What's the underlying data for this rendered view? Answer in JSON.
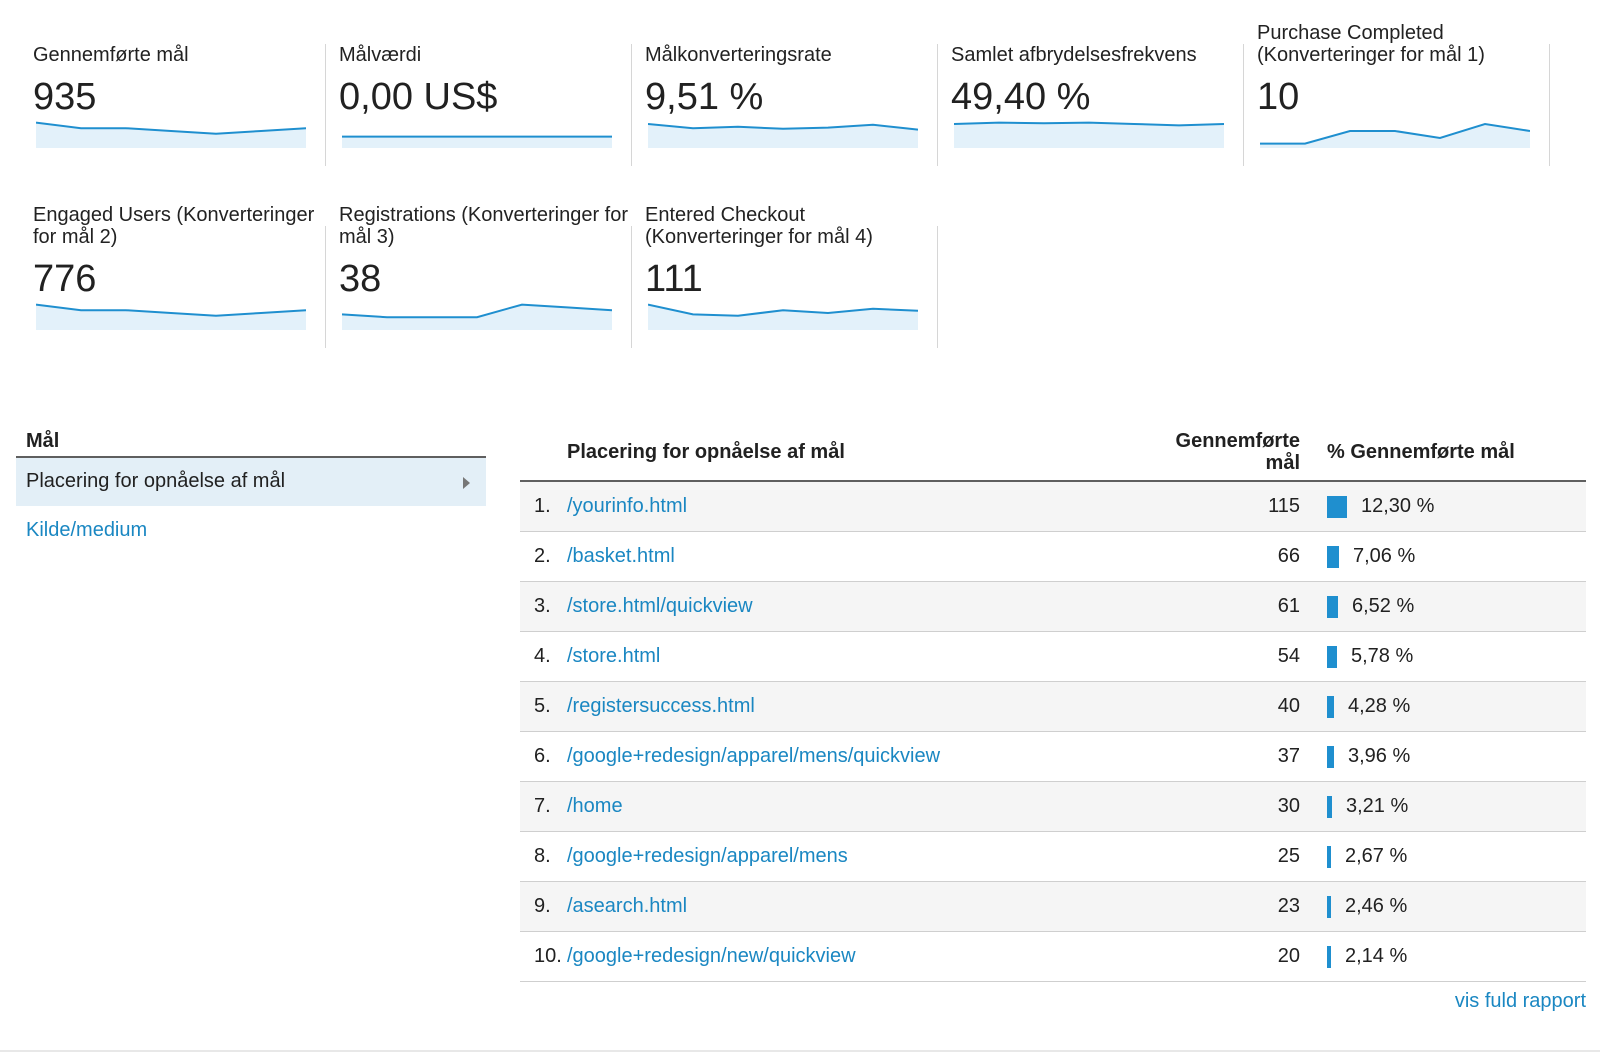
{
  "cards": [
    {
      "title": "Gennemførte mål",
      "value": "935",
      "trend": [
        0.8,
        0.6,
        0.6,
        0.5,
        0.4,
        0.5,
        0.6
      ]
    },
    {
      "title": "Målværdi",
      "value": "0,00 US$",
      "trend": [
        0.3,
        0.3,
        0.3,
        0.3,
        0.3,
        0.3,
        0.3
      ]
    },
    {
      "title": "Målkonverteringsrate",
      "value": "9,51 %",
      "trend": [
        0.75,
        0.6,
        0.65,
        0.58,
        0.62,
        0.72,
        0.55
      ]
    },
    {
      "title": "Samlet afbrydelsesfrekvens",
      "value": "49,40 %",
      "trend": [
        0.75,
        0.8,
        0.78,
        0.8,
        0.75,
        0.7,
        0.75
      ]
    },
    {
      "title": "Purchase Completed (Konverteringer for mål 1)",
      "value": "10",
      "trend": [
        0.05,
        0.05,
        0.5,
        0.5,
        0.25,
        0.75,
        0.5
      ]
    },
    {
      "title": "Engaged Users (Konverteringer for mål 2)",
      "value": "776",
      "trend": [
        0.8,
        0.6,
        0.6,
        0.5,
        0.4,
        0.5,
        0.6
      ]
    },
    {
      "title": "Registrations (Konverteringer for mål 3)",
      "value": "38",
      "trend": [
        0.45,
        0.35,
        0.35,
        0.35,
        0.8,
        0.7,
        0.6
      ]
    },
    {
      "title": "Entered Checkout (Konverteringer for mål 4)",
      "value": "111",
      "trend": [
        0.8,
        0.45,
        0.4,
        0.6,
        0.5,
        0.65,
        0.58
      ]
    }
  ],
  "goal_nav": {
    "heading": "Mål",
    "active_item": "Placering for opnåelse af mål",
    "other_item": "Kilde/medium"
  },
  "table": {
    "col_dimension": "Placering for opnåelse af mål",
    "col_value": "Gennemførte mål",
    "col_percent": "% Gennemførte mål",
    "rows": [
      {
        "rank": "1.",
        "page": "/yourinfo.html",
        "value": "115",
        "percent": "12,30 %",
        "share": 12.3
      },
      {
        "rank": "2.",
        "page": "/basket.html",
        "value": "66",
        "percent": "7,06 %",
        "share": 7.06
      },
      {
        "rank": "3.",
        "page": "/store.html/quickview",
        "value": "61",
        "percent": "6,52 %",
        "share": 6.52
      },
      {
        "rank": "4.",
        "page": "/store.html",
        "value": "54",
        "percent": "5,78 %",
        "share": 5.78
      },
      {
        "rank": "5.",
        "page": "/registersuccess.html",
        "value": "40",
        "percent": "4,28 %",
        "share": 4.28
      },
      {
        "rank": "6.",
        "page": "/google+redesign/apparel/mens/quickview",
        "value": "37",
        "percent": "3,96 %",
        "share": 3.96
      },
      {
        "rank": "7.",
        "page": "/home",
        "value": "30",
        "percent": "3,21 %",
        "share": 3.21
      },
      {
        "rank": "8.",
        "page": "/google+redesign/apparel/mens",
        "value": "25",
        "percent": "2,67 %",
        "share": 2.67
      },
      {
        "rank": "9.",
        "page": "/asearch.html",
        "value": "23",
        "percent": "2,46 %",
        "share": 2.46
      },
      {
        "rank": "10.",
        "page": "/google+redesign/new/quickview",
        "value": "20",
        "percent": "2,14 %",
        "share": 2.14
      }
    ],
    "full_report_link": "vis fuld rapport"
  },
  "colors": {
    "link": "#1a87c2",
    "bar": "#1f8fcf",
    "spark_line": "#1f8fcf",
    "spark_fill": "#e3f1fa"
  }
}
